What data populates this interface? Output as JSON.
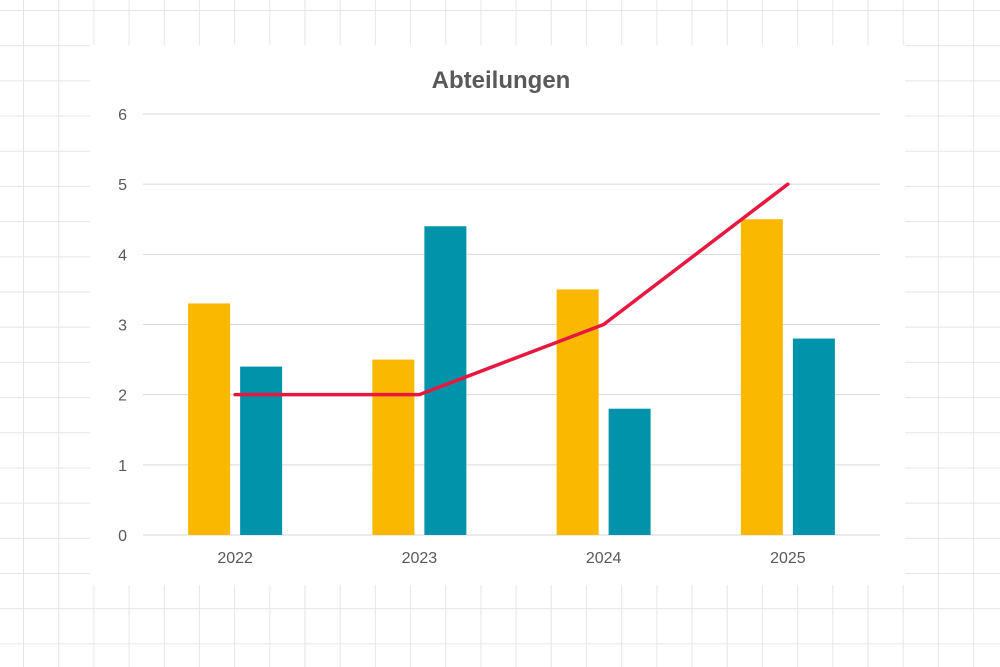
{
  "chart_data": {
    "type": "bar",
    "title": "Abteilungen",
    "xlabel": "",
    "ylabel": "",
    "categories": [
      "2022",
      "2023",
      "2024",
      "2025"
    ],
    "ylim": [
      0,
      6
    ],
    "yticks": [
      "0",
      "1",
      "2",
      "3",
      "4",
      "5",
      "6"
    ],
    "grid": true,
    "legend": "none",
    "series": [
      {
        "type": "bar",
        "color": "#FBB800",
        "values": [
          3.3,
          2.5,
          3.5,
          4.5
        ]
      },
      {
        "type": "bar",
        "color": "#0093A9",
        "values": [
          2.4,
          4.4,
          1.8,
          2.8
        ]
      },
      {
        "type": "line",
        "color": "#E8173F",
        "values": [
          2,
          2,
          3,
          5
        ]
      }
    ]
  }
}
